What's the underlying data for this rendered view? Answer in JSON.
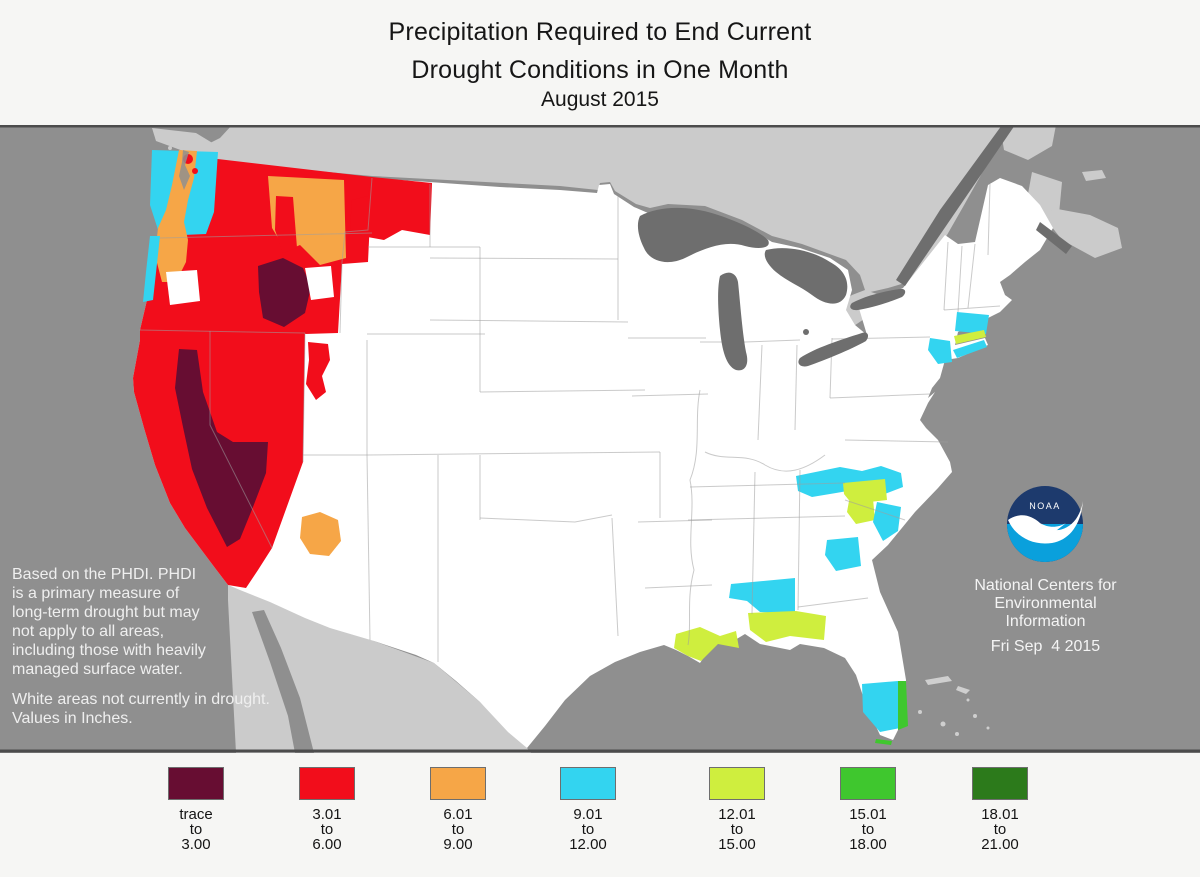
{
  "title": {
    "line1": "Precipitation Required to End Current",
    "line2": "Drought Conditions in One Month",
    "line3": "August 2015"
  },
  "map": {
    "note_lines": [
      "Based on the PHDI. PHDI",
      "is a primary measure of",
      "long-term drought but may",
      "not apply to all areas,",
      "including those with heavily",
      "managed surface water."
    ],
    "note2_lines": [
      "White areas not currently in drought.",
      "Values in Inches."
    ],
    "agency": {
      "logo_text": "NOAA",
      "name_lines": [
        "National Centers for",
        "Environmental",
        "Information"
      ],
      "date": "Fri Sep  4 2015"
    },
    "colors": {
      "ocean": "#8f8f8f",
      "neighbor_land": "#cbcbcb",
      "lakes": "#6e6e6e",
      "us_fill": "#ffffff",
      "state_border": "#b5b5b5"
    }
  },
  "legend": {
    "items": [
      {
        "label_lines": [
          "trace",
          "to",
          "3.00"
        ],
        "color": "#670D32"
      },
      {
        "label_lines": [
          "3.01",
          "to",
          "6.00"
        ],
        "color": "#F20D1B"
      },
      {
        "label_lines": [
          "6.01",
          "to",
          "9.00"
        ],
        "color": "#F6A647"
      },
      {
        "label_lines": [
          "9.01",
          "to",
          "12.00"
        ],
        "color": "#33D4F0"
      },
      {
        "label_lines": [
          "12.01",
          "to",
          "15.00"
        ],
        "color": "#CFEE3E"
      },
      {
        "label_lines": [
          "15.01",
          "to",
          "18.00"
        ],
        "color": "#3FC72E"
      },
      {
        "label_lines": [
          "18.01",
          "to",
          "21.00"
        ],
        "color": "#2C7A1B"
      }
    ]
  },
  "chart_data": {
    "type": "choropleth-map",
    "title": "Precipitation Required to End Current Drought Conditions in One Month — August 2015",
    "units": "inches",
    "legend_position": "bottom",
    "buckets": [
      {
        "range": "trace to 3.00",
        "color": "#670D32"
      },
      {
        "range": "3.01 to 6.00",
        "color": "#F20D1B"
      },
      {
        "range": "6.01 to 9.00",
        "color": "#F6A647"
      },
      {
        "range": "9.01 to 12.00",
        "color": "#33D4F0"
      },
      {
        "range": "12.01 to 15.00",
        "color": "#CFEE3E"
      },
      {
        "range": "15.01 to 18.00",
        "color": "#3FC72E"
      },
      {
        "range": "18.01 to 21.00",
        "color": "#2C7A1B"
      }
    ],
    "regions": [
      {
        "area": "Southern Central Valley California, southern Nevada, southeastern Idaho",
        "value": "trace to 3.00"
      },
      {
        "area": "Most of California, Nevada, eastern Washington, most of Oregon, southern/central Idaho, northwestern Montana, northern Utah (Wasatch Front)",
        "value": "3.01 to 6.00"
      },
      {
        "area": "Puget lowlands strip of Washington into northwest Oregon, northern and eastern Idaho, central Arizona",
        "value": "6.01 to 9.00"
      },
      {
        "area": "Western Washington coast, Oregon coast, northern Georgia and western Carolinas, central Georgia, central South Carolina, southern Alabama, South Florida, New Jersey, Connecticut/Massachusetts, Long Island",
        "value": "9.01 to 12.00"
      },
      {
        "area": "North Carolina piedmont, central Georgia patch, Florida panhandle coast, southeastern Louisiana delta, coastal Connecticut strip",
        "value": "12.01 to 15.00"
      },
      {
        "area": "Southeast Florida Atlantic coastal strip, Florida Keys",
        "value": "15.01 to 18.00"
      },
      {
        "area": "(none visible on map)",
        "value": "18.01 to 21.00"
      },
      {
        "area": "White areas",
        "value": "not currently in drought"
      }
    ]
  }
}
